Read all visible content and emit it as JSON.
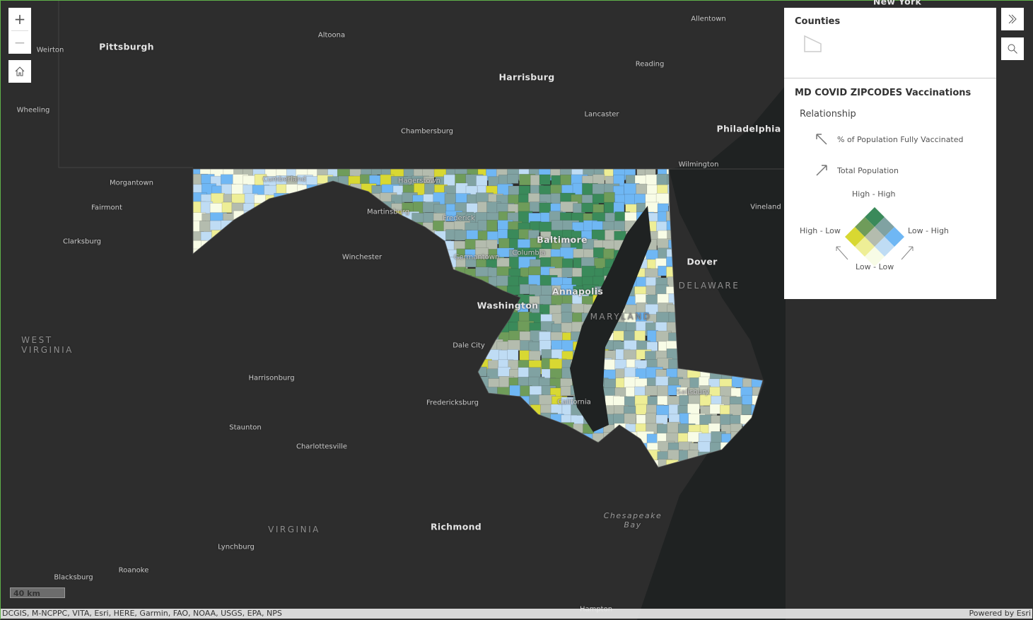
{
  "map": {
    "labels": [
      {
        "text": "Pittsburgh",
        "kind": "big"
      },
      {
        "text": "Weirton",
        "kind": "city"
      },
      {
        "text": "Altoona",
        "kind": "city"
      },
      {
        "text": "Harrisburg",
        "kind": "big"
      },
      {
        "text": "Allentown",
        "kind": "city"
      },
      {
        "text": "Reading",
        "kind": "city"
      },
      {
        "text": "Wheeling",
        "kind": "city"
      },
      {
        "text": "Lancaster",
        "kind": "city"
      },
      {
        "text": "Chambersburg",
        "kind": "city"
      },
      {
        "text": "Philadelphia",
        "kind": "big"
      },
      {
        "text": "Wilmington",
        "kind": "city"
      },
      {
        "text": "Morgantown",
        "kind": "city"
      },
      {
        "text": "Fairmont",
        "kind": "city"
      },
      {
        "text": "Martinsburg",
        "kind": "city"
      },
      {
        "text": "Vineland",
        "kind": "city"
      },
      {
        "text": "Clarksburg",
        "kind": "city"
      },
      {
        "text": "Baltimore",
        "kind": "big"
      },
      {
        "text": "Columbia",
        "kind": "city"
      },
      {
        "text": "Dover",
        "kind": "big"
      },
      {
        "text": "Winchester",
        "kind": "city"
      },
      {
        "text": "DELAWARE",
        "kind": "region"
      },
      {
        "text": "Annapolis",
        "kind": "big"
      },
      {
        "text": "Washington",
        "kind": "big"
      },
      {
        "text": "WEST\nVIRGINIA",
        "kind": "region"
      },
      {
        "text": "Dale City",
        "kind": "city"
      },
      {
        "text": "Harrisonburg",
        "kind": "city"
      },
      {
        "text": "Fredericksburg",
        "kind": "city"
      },
      {
        "text": "Staunton",
        "kind": "city"
      },
      {
        "text": "Charlottesville",
        "kind": "city"
      },
      {
        "text": "VIRGINIA",
        "kind": "region"
      },
      {
        "text": "Richmond",
        "kind": "big"
      },
      {
        "text": "Chesapeake\nBay",
        "kind": "water"
      },
      {
        "text": "Lynchburg",
        "kind": "city"
      },
      {
        "text": "Roanoke",
        "kind": "city"
      },
      {
        "text": "Blacksburg",
        "kind": "city"
      },
      {
        "text": "Cumberland",
        "kind": "city"
      },
      {
        "text": "Hagerstown",
        "kind": "city"
      },
      {
        "text": "Frederick",
        "kind": "city"
      },
      {
        "text": "Germantown",
        "kind": "city"
      },
      {
        "text": "MARYLAND",
        "kind": "region"
      },
      {
        "text": "Salisbury",
        "kind": "city"
      },
      {
        "text": "California",
        "kind": "city"
      },
      {
        "text": "New York",
        "kind": "big"
      },
      {
        "text": "Hampton",
        "kind": "city"
      }
    ],
    "scale_label": "40 km",
    "attribution": "DCGIS, M-NCPPC, VITA, Esri, HERE, Garmin, FAO, NOAA, USGS, EPA, NPS",
    "powered_by": "Powered by Esri"
  },
  "controls": {
    "zoom_in": "+",
    "zoom_out": "−",
    "home_icon": "home-icon",
    "expand_icon": "double-chevron-right-icon",
    "search_icon": "search-icon"
  },
  "legend": {
    "layer1_title": "Counties",
    "layer2_title": "MD COVID ZIPCODES Vaccinations",
    "relationship_label": "Relationship",
    "field1": "% of Population Fully Vaccinated",
    "field2": "Total Population",
    "corners": {
      "top": "High - High",
      "left": "High - Low",
      "right": "Low - High",
      "bottom": "Low - Low"
    },
    "colors": {
      "high_high": "#3a8a5a",
      "high_mid": "#6f9c5a",
      "mid_high": "#80a2a2",
      "high_low": "#d8d832",
      "mid_mid": "#b4bcae",
      "low_high": "#6fb7f4",
      "mid_low": "#eeee96",
      "low_mid": "#bfdcf4",
      "low_low": "#f8fce6"
    }
  }
}
